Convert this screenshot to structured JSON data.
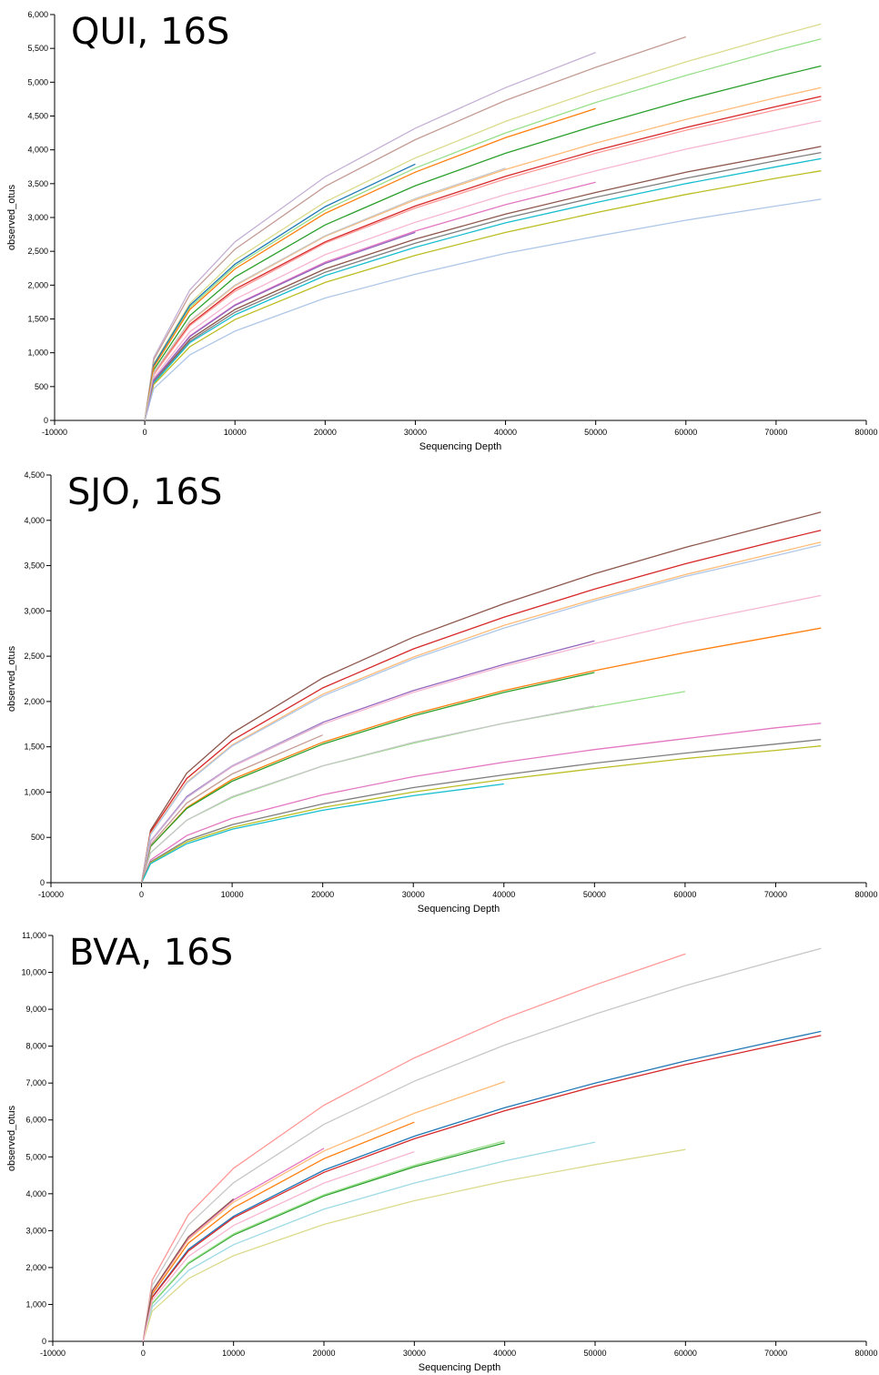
{
  "chart_data": [
    {
      "type": "line",
      "title": "QUI, 16S",
      "xlabel": "Sequencing Depth",
      "ylabel": "observed_otus",
      "x": [
        0,
        1000,
        5000,
        10000,
        20000,
        30000,
        40000,
        50000,
        60000,
        70000,
        75000
      ],
      "xlim": [
        -10000,
        80000
      ],
      "xticks": [
        -10000,
        0,
        10000,
        20000,
        30000,
        40000,
        50000,
        60000,
        70000,
        80000
      ],
      "ylim": [
        0,
        6000
      ],
      "yticks": [
        0,
        500,
        {
          "value": 1000,
          "label": "1,000"
        },
        {
          "value": 1500,
          "label": "1,500"
        },
        {
          "value": 2000,
          "label": "2,000"
        },
        {
          "value": 2500,
          "label": "2,500"
        },
        {
          "value": 3000,
          "label": "3,000"
        },
        {
          "value": 3500,
          "label": "3,500"
        },
        {
          "value": 4000,
          "label": "4,000"
        },
        {
          "value": 4500,
          "label": "4,500"
        },
        {
          "value": 5000,
          "label": "5,000"
        },
        {
          "value": 5500,
          "label": "5,500"
        },
        {
          "value": 6000,
          "label": "6,000"
        }
      ],
      "series": [
        {
          "color": "#c5b0d5",
          "values": [
            0,
            930,
            1930,
            2640,
            3600,
            4320,
            4920,
            5440,
            null,
            null,
            null
          ]
        },
        {
          "color": "#c49c94",
          "values": [
            0,
            900,
            1860,
            2530,
            3460,
            4150,
            4730,
            5220,
            5670,
            null,
            null
          ]
        },
        {
          "color": "#dbdb8d",
          "values": [
            0,
            840,
            1730,
            2370,
            3230,
            3880,
            4420,
            4880,
            5300,
            5680,
            5860
          ]
        },
        {
          "color": "#98df8a",
          "values": [
            0,
            810,
            1670,
            2280,
            3110,
            3730,
            4250,
            4700,
            5100,
            5470,
            5640
          ]
        },
        {
          "color": "#2ca02c",
          "values": [
            0,
            750,
            1550,
            2120,
            2890,
            3470,
            3950,
            4360,
            4740,
            5080,
            5240
          ]
        },
        {
          "color": "#ffbb78",
          "values": [
            0,
            700,
            1460,
            1990,
            2720,
            3260,
            3710,
            4100,
            4450,
            4770,
            4920
          ]
        },
        {
          "color": "#d62728",
          "values": [
            0,
            680,
            1420,
            1940,
            2640,
            3170,
            3610,
            3990,
            4330,
            4640,
            4790
          ]
        },
        {
          "color": "#ff9896",
          "values": [
            0,
            680,
            1400,
            1910,
            2620,
            3140,
            3570,
            3950,
            4290,
            4590,
            4740
          ]
        },
        {
          "color": "#f7b6d2",
          "values": [
            0,
            630,
            1310,
            1790,
            2450,
            2930,
            3340,
            3690,
            4010,
            4290,
            4430
          ]
        },
        {
          "color": "#8c564b",
          "values": [
            0,
            580,
            1200,
            1640,
            2240,
            2680,
            3050,
            3370,
            3670,
            3920,
            4050
          ]
        },
        {
          "color": "#7f7f7f",
          "values": [
            0,
            570,
            1170,
            1600,
            2190,
            2620,
            2990,
            3300,
            3580,
            3840,
            3960
          ]
        },
        {
          "color": "#17becf",
          "values": [
            0,
            550,
            1150,
            1560,
            2140,
            2560,
            2920,
            3220,
            3500,
            3750,
            3870
          ]
        },
        {
          "color": "#bcbd22",
          "values": [
            0,
            530,
            1090,
            1490,
            2040,
            2440,
            2780,
            3070,
            3340,
            3580,
            3690
          ]
        },
        {
          "color": "#aec7e8",
          "values": [
            0,
            470,
            970,
            1320,
            1810,
            2160,
            2470,
            2720,
            2960,
            3170,
            3270
          ]
        },
        {
          "color": "#1f77b4",
          "values": [
            0,
            820,
            1700,
            2310,
            3160,
            3790,
            null,
            null,
            null,
            null,
            null
          ]
        },
        {
          "color": "#ff7f0e",
          "values": [
            0,
            790,
            1640,
            2240,
            3060,
            3670,
            4180,
            4610,
            null,
            null,
            null
          ]
        },
        {
          "color": "#e377c2",
          "values": [
            0,
            600,
            1250,
            1710,
            2340,
            2800,
            3190,
            3520,
            null,
            null,
            null
          ]
        },
        {
          "color": "#9467bd",
          "values": [
            0,
            600,
            1240,
            1700,
            2320,
            2780,
            null,
            null,
            null,
            null,
            null
          ]
        },
        {
          "color": "#c7c7c7",
          "values": [
            0,
            710,
            1470,
            2000,
            2730,
            3280,
            3730,
            null,
            null,
            null,
            null
          ]
        }
      ]
    },
    {
      "type": "line",
      "title": "SJO, 16S",
      "xlabel": "Sequencing Depth",
      "ylabel": "observed_otus",
      "x": [
        0,
        1000,
        5000,
        10000,
        20000,
        30000,
        40000,
        50000,
        60000,
        70000,
        75000
      ],
      "xlim": [
        -10000,
        80000
      ],
      "xticks": [
        -10000,
        0,
        10000,
        20000,
        30000,
        40000,
        50000,
        60000,
        70000,
        80000
      ],
      "ylim": [
        0,
        4500
      ],
      "yticks": [
        0,
        500,
        {
          "value": 1000,
          "label": "1,000"
        },
        {
          "value": 1500,
          "label": "1,500"
        },
        {
          "value": 2000,
          "label": "2,000"
        },
        {
          "value": 2500,
          "label": "2,500"
        },
        {
          "value": 3000,
          "label": "3,000"
        },
        {
          "value": 3500,
          "label": "3,500"
        },
        {
          "value": 4000,
          "label": "4,000"
        },
        {
          "value": 4500,
          "label": "4,500"
        }
      ],
      "series": [
        {
          "color": "#8c564b",
          "values": [
            0,
            580,
            1210,
            1650,
            2260,
            2710,
            3080,
            3410,
            3700,
            3960,
            4090
          ]
        },
        {
          "color": "#d62728",
          "values": [
            0,
            560,
            1150,
            1570,
            2150,
            2580,
            2930,
            3240,
            3520,
            3770,
            3890
          ]
        },
        {
          "color": "#ffbb78",
          "values": [
            0,
            540,
            1110,
            1520,
            2080,
            2490,
            2840,
            3130,
            3400,
            3640,
            3760
          ]
        },
        {
          "color": "#aec7e8",
          "values": [
            0,
            530,
            1100,
            1510,
            2060,
            2470,
            2810,
            3110,
            3380,
            3610,
            3730
          ]
        },
        {
          "color": "#f7b6d2",
          "values": [
            0,
            450,
            940,
            1280,
            1750,
            2100,
            2390,
            2640,
            2870,
            3070,
            3170
          ]
        },
        {
          "color": "#9467bd",
          "values": [
            0,
            460,
            950,
            1290,
            1770,
            2120,
            2410,
            2670,
            null,
            null,
            null
          ]
        },
        {
          "color": "#ff7f0e",
          "values": [
            0,
            400,
            830,
            1140,
            1550,
            1860,
            2120,
            2340,
            2540,
            2720,
            2810
          ]
        },
        {
          "color": "#2ca02c",
          "values": [
            0,
            400,
            820,
            1120,
            1530,
            1840,
            2100,
            2320,
            null,
            null,
            null
          ]
        },
        {
          "color": "#98df8a",
          "values": [
            0,
            330,
            690,
            940,
            1290,
            1540,
            1760,
            1940,
            2110,
            null,
            null
          ]
        },
        {
          "color": "#c7c7c7",
          "values": [
            0,
            330,
            690,
            950,
            1290,
            1550,
            1760,
            1950,
            null,
            null,
            null
          ]
        },
        {
          "color": "#e377c2",
          "values": [
            0,
            250,
            520,
            710,
            970,
            1170,
            1330,
            1470,
            1590,
            1710,
            1760
          ]
        },
        {
          "color": "#7f7f7f",
          "values": [
            0,
            230,
            470,
            640,
            870,
            1050,
            1190,
            1320,
            1430,
            1530,
            1580
          ]
        },
        {
          "color": "#bcbd22",
          "values": [
            0,
            220,
            450,
            610,
            830,
            1000,
            1140,
            1260,
            1370,
            1460,
            1510
          ]
        },
        {
          "color": "#17becf",
          "values": [
            0,
            210,
            430,
            590,
            800,
            960,
            1090,
            null,
            null,
            null,
            null
          ]
        },
        {
          "color": "#c5b0d5",
          "values": [
            0,
            460,
            940,
            1290,
            1760,
            null,
            null,
            null,
            null,
            null,
            null
          ]
        },
        {
          "color": "#c49c94",
          "values": [
            0,
            420,
            880,
            1200,
            1630,
            null,
            null,
            null,
            null,
            null,
            null
          ]
        }
      ]
    },
    {
      "type": "line",
      "title": "BVA, 16S",
      "xlabel": "Sequencing Depth",
      "ylabel": "observed_otus",
      "x": [
        0,
        1000,
        5000,
        10000,
        20000,
        30000,
        40000,
        50000,
        60000,
        70000,
        75000
      ],
      "xlim": [
        -10000,
        80000
      ],
      "xticks": [
        -10000,
        0,
        10000,
        20000,
        30000,
        40000,
        50000,
        60000,
        70000,
        80000
      ],
      "ylim": [
        0,
        11000
      ],
      "yticks": [
        0,
        {
          "value": 1000,
          "label": "1,000"
        },
        {
          "value": 2000,
          "label": "2,000"
        },
        {
          "value": 3000,
          "label": "3,000"
        },
        {
          "value": 4000,
          "label": "4,000"
        },
        {
          "value": 5000,
          "label": "5,000"
        },
        {
          "value": 6000,
          "label": "6,000"
        },
        {
          "value": 7000,
          "label": "7,000"
        },
        {
          "value": 8000,
          "label": "8,000"
        },
        {
          "value": 9000,
          "label": "9,000"
        },
        {
          "value": 10000,
          "label": "10,000"
        },
        {
          "value": 11000,
          "label": "11,000"
        }
      ],
      "series": [
        {
          "color": "#ff9896",
          "values": [
            0,
            1660,
            3430,
            4690,
            6400,
            7680,
            8750,
            9660,
            10500,
            null,
            null
          ]
        },
        {
          "color": "#c7c7c7",
          "values": [
            0,
            1520,
            3150,
            4300,
            5880,
            7050,
            8030,
            8870,
            9640,
            10320,
            10650
          ]
        },
        {
          "color": "#1f77b4",
          "values": [
            0,
            1200,
            2490,
            3390,
            4640,
            5560,
            6330,
            7000,
            7600,
            8140,
            8400
          ]
        },
        {
          "color": "#d62728",
          "values": [
            0,
            1190,
            2450,
            3350,
            4580,
            5490,
            6250,
            6910,
            7500,
            8030,
            8290
          ]
        },
        {
          "color": "#ffbb78",
          "values": [
            0,
            1340,
            2760,
            3770,
            5160,
            6180,
            7040,
            null,
            null,
            null,
            null
          ]
        },
        {
          "color": "#ff7f0e",
          "values": [
            0,
            1280,
            2660,
            3620,
            4950,
            5940,
            null,
            null,
            null,
            null,
            null
          ]
        },
        {
          "color": "#2ca02c",
          "values": [
            0,
            1020,
            2110,
            2880,
            3940,
            4730,
            5380,
            null,
            null,
            null,
            null
          ]
        },
        {
          "color": "#98df8a",
          "values": [
            0,
            1030,
            2130,
            2910,
            3970,
            4770,
            5430,
            null,
            null,
            null,
            null
          ]
        },
        {
          "color": "#9edae5",
          "values": [
            0,
            930,
            1920,
            2620,
            3580,
            4290,
            4890,
            5400,
            null,
            null,
            null
          ]
        },
        {
          "color": "#dbdb8d",
          "values": [
            0,
            820,
            1700,
            2320,
            3170,
            3810,
            4340,
            4790,
            5200,
            null,
            null
          ]
        },
        {
          "color": "#e377c2",
          "values": [
            0,
            1350,
            2800,
            3830,
            5230,
            null,
            null,
            null,
            null,
            null,
            null
          ]
        },
        {
          "color": "#8c564b",
          "values": [
            0,
            1370,
            2830,
            3860,
            null,
            null,
            null,
            null,
            null,
            null,
            null
          ]
        },
        {
          "color": "#f7b6d2",
          "values": [
            0,
            1110,
            2300,
            3140,
            4290,
            5140,
            null,
            null,
            null,
            null,
            null
          ]
        }
      ]
    }
  ]
}
